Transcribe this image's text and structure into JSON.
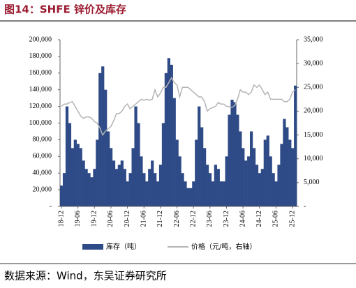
{
  "chart_data": {
    "type": "bar-line",
    "title": "图14：SHFE 锌价及库存",
    "source": "数据来源：Wind，东吴证券研究所",
    "categories": [
      "18-12",
      null,
      null,
      null,
      null,
      null,
      "19-06",
      null,
      null,
      null,
      null,
      null,
      "19-12",
      null,
      null,
      null,
      null,
      null,
      "20-06",
      null,
      null,
      null,
      null,
      null,
      "20-12",
      null,
      null,
      null,
      null,
      null,
      "21-06",
      null,
      null,
      null,
      null,
      null,
      "21-12",
      null,
      null,
      null,
      null,
      null,
      "22-06",
      null,
      null,
      null,
      null,
      null,
      "22-12",
      null,
      null,
      null,
      null,
      null,
      "23-06",
      null,
      null,
      null,
      null,
      null,
      "23-12",
      null,
      null,
      null,
      null,
      null,
      "24-06",
      null,
      null,
      null,
      null,
      null,
      "24-12",
      null,
      null,
      null,
      null,
      null,
      "25-06",
      null,
      null,
      null,
      null,
      null,
      "25-12",
      null
    ],
    "series": [
      {
        "name": "库存（吨）",
        "color": "#2f4b87",
        "type": "bar",
        "values": [
          25000,
          40000,
          120000,
          100000,
          70000,
          80000,
          75000,
          70000,
          55000,
          45000,
          40000,
          35000,
          45000,
          80000,
          160000,
          168000,
          140000,
          90000,
          70000,
          55000,
          45000,
          50000,
          55000,
          45000,
          30000,
          40000,
          70000,
          120000,
          100000,
          60000,
          40000,
          30000,
          45000,
          55000,
          40000,
          30000,
          50000,
          100000,
          160000,
          178000,
          170000,
          130000,
          80000,
          60000,
          40000,
          30000,
          22000,
          22000,
          30000,
          80000,
          120000,
          95000,
          70000,
          50000,
          40000,
          30000,
          50000,
          45000,
          30000,
          30000,
          60000,
          110000,
          128000,
          125000,
          110000,
          90000,
          70000,
          55000,
          60000,
          90000,
          70000,
          50000,
          40000,
          45000,
          80000,
          85000,
          60000,
          40000,
          30000,
          50000,
          75000,
          105000,
          95000,
          80000,
          70000,
          145000
        ]
      },
      {
        "name": "价格（元/吨，右轴）",
        "color": "#b4b4b4",
        "type": "line",
        "axis": "y2",
        "values": [
          21000,
          21500,
          21500,
          21800,
          22000,
          21000,
          20000,
          19000,
          18500,
          18800,
          18800,
          18500,
          17800,
          17500,
          16500,
          15000,
          15800,
          16300,
          16800,
          18000,
          19500,
          19500,
          20000,
          21000,
          21500,
          20500,
          21000,
          21500,
          22000,
          22500,
          22300,
          22500,
          22300,
          22500,
          24500,
          23000,
          23800,
          25000,
          25000,
          26000,
          27000,
          26000,
          25500,
          23000,
          25000,
          25000,
          25000,
          24500,
          24000,
          23500,
          23000,
          23000,
          22000,
          20000,
          20500,
          20800,
          21000,
          21800,
          21500,
          21500,
          21000,
          21000,
          20800,
          21200,
          22500,
          24500,
          24000,
          24000,
          23500,
          24000,
          25500,
          25000,
          25500,
          24500,
          23500,
          24000,
          22500,
          22500,
          22500,
          22500,
          22500,
          22000,
          22000,
          22500,
          24000,
          24500
        ]
      }
    ],
    "ylim": [
      0,
      200000
    ],
    "yticks": [
      {
        "value": 0,
        "label": "-"
      },
      {
        "value": 20000,
        "label": "20,000"
      },
      {
        "value": 40000,
        "label": "40,000"
      },
      {
        "value": 60000,
        "label": "60,000"
      },
      {
        "value": 80000,
        "label": "80,000"
      },
      {
        "value": 100000,
        "label": "100,000"
      },
      {
        "value": 120000,
        "label": "120,000"
      },
      {
        "value": 140000,
        "label": "140,000"
      },
      {
        "value": 160000,
        "label": "160,000"
      },
      {
        "value": 180000,
        "label": "180,000"
      },
      {
        "value": 200000,
        "label": "200,000"
      }
    ],
    "y2lim": [
      0,
      35000
    ],
    "y2ticks": [
      {
        "value": 0,
        "label": "-"
      },
      {
        "value": 5000,
        "label": "5,000"
      },
      {
        "value": 10000,
        "label": "10,000"
      },
      {
        "value": 15000,
        "label": "15,000"
      },
      {
        "value": 20000,
        "label": "20,000"
      },
      {
        "value": 25000,
        "label": "25,000"
      },
      {
        "value": 30000,
        "label": "30,000"
      },
      {
        "value": 35000,
        "label": "35,000"
      }
    ]
  }
}
